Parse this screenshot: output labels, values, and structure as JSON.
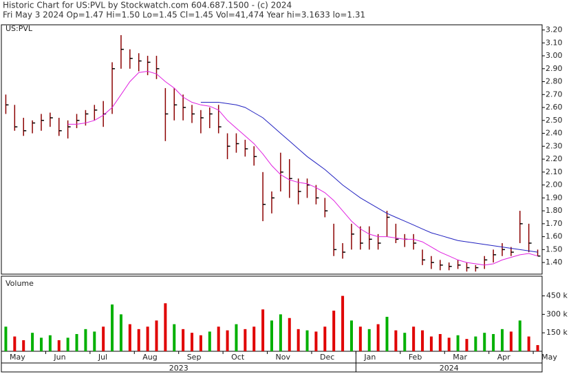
{
  "chart_data": [
    {
      "type": "ohlc",
      "title": "Historic Chart for US:PVL by Stockwatch.com 604.687.1500 - (c) 2024",
      "subtitle": "Fri May  3 2024  Op=1.47  Hi=1.50  Lo=1.45  Cl=1.45  Vol=41,474  Year hi=3.1633  lo=1.31",
      "legend": "US:PVL",
      "categories": [
        "May",
        null,
        null,
        null,
        null,
        "Jun",
        null,
        null,
        null,
        null,
        "Jul",
        null,
        null,
        null,
        null,
        "Aug",
        null,
        null,
        null,
        null,
        "Sep",
        null,
        null,
        null,
        null,
        "Oct",
        null,
        null,
        null,
        null,
        "Nov",
        null,
        null,
        null,
        null,
        "Dec",
        null,
        null,
        null,
        null,
        "Jan",
        null,
        null,
        null,
        null,
        "Feb",
        null,
        null,
        null,
        null,
        "Mar",
        null,
        null,
        null,
        null,
        "Apr",
        null,
        null,
        null,
        null,
        "May"
      ],
      "year_labels": [
        "2023",
        "2024"
      ],
      "color": "#8b0000",
      "high": [
        2.7,
        2.62,
        2.52,
        2.5,
        2.55,
        2.56,
        2.52,
        2.5,
        2.55,
        2.58,
        2.62,
        2.65,
        2.95,
        3.16,
        3.05,
        3.02,
        3.0,
        3.0,
        2.75,
        2.75,
        2.7,
        2.62,
        2.58,
        2.6,
        2.62,
        2.4,
        2.4,
        2.35,
        2.3,
        2.1,
        1.95,
        2.25,
        2.2,
        2.05,
        2.05,
        2.0,
        1.9,
        1.7,
        1.55,
        1.7,
        1.68,
        1.68,
        1.62,
        1.8,
        1.7,
        1.62,
        1.62,
        1.5,
        1.45,
        1.42,
        1.4,
        1.42,
        1.4,
        1.38,
        1.45,
        1.5,
        1.55,
        1.52,
        1.8,
        1.7,
        1.5
      ],
      "low": [
        2.55,
        2.42,
        2.38,
        2.4,
        2.42,
        2.45,
        2.38,
        2.36,
        2.44,
        2.46,
        2.5,
        2.45,
        2.55,
        2.9,
        2.9,
        2.88,
        2.85,
        2.82,
        2.34,
        2.5,
        2.5,
        2.48,
        2.4,
        2.44,
        2.4,
        2.2,
        2.25,
        2.22,
        2.15,
        1.72,
        1.78,
        1.95,
        1.9,
        1.85,
        1.9,
        1.85,
        1.75,
        1.45,
        1.43,
        1.5,
        1.5,
        1.5,
        1.5,
        1.6,
        1.55,
        1.52,
        1.5,
        1.38,
        1.35,
        1.34,
        1.34,
        1.35,
        1.33,
        1.33,
        1.35,
        1.4,
        1.45,
        1.45,
        1.55,
        1.48,
        1.45
      ],
      "close": [
        2.62,
        2.45,
        2.42,
        2.48,
        2.5,
        2.52,
        2.42,
        2.45,
        2.5,
        2.55,
        2.58,
        2.55,
        2.9,
        3.05,
        2.98,
        2.96,
        2.95,
        2.9,
        2.55,
        2.62,
        2.6,
        2.55,
        2.52,
        2.55,
        2.45,
        2.3,
        2.32,
        2.28,
        2.22,
        1.85,
        1.9,
        2.1,
        2.05,
        1.95,
        2.0,
        1.9,
        1.8,
        1.5,
        1.48,
        1.62,
        1.55,
        1.58,
        1.55,
        1.75,
        1.58,
        1.58,
        1.55,
        1.42,
        1.4,
        1.38,
        1.37,
        1.38,
        1.36,
        1.36,
        1.42,
        1.46,
        1.5,
        1.48,
        1.7,
        1.55,
        1.45
      ],
      "series": [
        {
          "color": "#e020e0",
          "values": [
            null,
            null,
            null,
            null,
            null,
            null,
            null,
            2.47,
            2.47,
            2.48,
            2.5,
            2.54,
            2.6,
            2.7,
            2.8,
            2.87,
            2.88,
            2.86,
            2.8,
            2.75,
            2.68,
            2.64,
            2.62,
            2.61,
            2.58,
            2.5,
            2.44,
            2.38,
            2.32,
            2.24,
            2.15,
            2.08,
            2.04,
            2.02,
            2.01,
            1.98,
            1.94,
            1.88,
            1.8,
            1.72,
            1.66,
            1.62,
            1.6,
            1.6,
            1.59,
            1.58,
            1.58,
            1.56,
            1.52,
            1.48,
            1.45,
            1.42,
            1.4,
            1.39,
            1.38,
            1.39,
            1.42,
            1.44,
            1.46,
            1.47,
            1.45
          ]
        },
        {
          "color": "#2020c0",
          "values": [
            null,
            null,
            null,
            null,
            null,
            null,
            null,
            null,
            null,
            null,
            null,
            null,
            null,
            null,
            null,
            null,
            null,
            null,
            null,
            null,
            null,
            null,
            2.64,
            2.64,
            2.64,
            2.63,
            2.62,
            2.6,
            2.56,
            2.52,
            2.46,
            2.4,
            2.34,
            2.28,
            2.22,
            2.17,
            2.12,
            2.06,
            2.0,
            1.95,
            1.9,
            1.86,
            1.82,
            1.78,
            1.75,
            1.72,
            1.69,
            1.66,
            1.63,
            1.61,
            1.59,
            1.57,
            1.56,
            1.55,
            1.54,
            1.53,
            1.52,
            1.51,
            1.5,
            1.49,
            1.48
          ]
        }
      ],
      "ylim": [
        1.31,
        3.24
      ],
      "yticks": [
        {
          "value": 1.4,
          "label": "1.40"
        },
        {
          "value": 1.5,
          "label": "1.50"
        },
        {
          "value": 1.6,
          "label": "1.60"
        },
        {
          "value": 1.7,
          "label": "1.70"
        },
        {
          "value": 1.8,
          "label": "1.80"
        },
        {
          "value": 1.9,
          "label": "1.90"
        },
        {
          "value": 2.0,
          "label": "2.00"
        },
        {
          "value": 2.1,
          "label": "2.10"
        },
        {
          "value": 2.2,
          "label": "2.20"
        },
        {
          "value": 2.3,
          "label": "2.30"
        },
        {
          "value": 2.4,
          "label": "2.40"
        },
        {
          "value": 2.5,
          "label": "2.50"
        },
        {
          "value": 2.6,
          "label": "2.60"
        },
        {
          "value": 2.7,
          "label": "2.70"
        },
        {
          "value": 2.8,
          "label": "2.80"
        },
        {
          "value": 2.9,
          "label": "2.90"
        },
        {
          "value": 3.0,
          "label": "3.00"
        },
        {
          "value": 3.1,
          "label": "3.10"
        },
        {
          "value": 3.2,
          "label": "3.20"
        }
      ]
    },
    {
      "type": "bar",
      "legend": "Volume",
      "up_color": "#00b000",
      "down_color": "#e00000",
      "values": [
        200000,
        120000,
        90000,
        150000,
        110000,
        130000,
        90000,
        110000,
        140000,
        180000,
        160000,
        200000,
        380000,
        300000,
        220000,
        180000,
        200000,
        250000,
        390000,
        220000,
        180000,
        150000,
        130000,
        160000,
        200000,
        170000,
        220000,
        180000,
        200000,
        340000,
        250000,
        300000,
        270000,
        180000,
        170000,
        160000,
        200000,
        330000,
        450000,
        250000,
        200000,
        180000,
        220000,
        280000,
        170000,
        150000,
        200000,
        170000,
        120000,
        140000,
        110000,
        130000,
        100000,
        120000,
        150000,
        140000,
        180000,
        160000,
        250000,
        120000,
        50000
      ],
      "ylim": [
        0,
        610000
      ],
      "yticks": [
        {
          "value": 150000,
          "label": "150 k"
        },
        {
          "value": 300000,
          "label": "300 k"
        },
        {
          "value": 450000,
          "label": "450 k"
        }
      ]
    }
  ]
}
